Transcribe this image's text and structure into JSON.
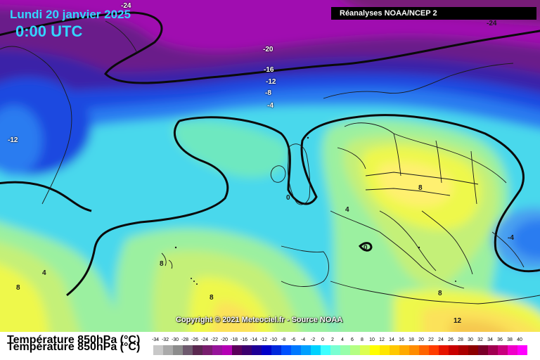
{
  "header": {
    "date": "Lundi 20 janvier 2025",
    "time": "0:00 UTC",
    "source": "Réanalyses NOAA/NCEP 2"
  },
  "copyright": "Copyright © 2021 Meteociel.fr - Source NOAA",
  "legend": {
    "title": "Température 850hPa (°C)",
    "ticks": [
      "-34",
      "-32",
      "-30",
      "-28",
      "-26",
      "-24",
      "-22",
      "-20",
      "-18",
      "-16",
      "-14",
      "-12",
      "-10",
      "-8",
      "-6",
      "-4",
      "-2",
      "0",
      "2",
      "4",
      "6",
      "8",
      "10",
      "12",
      "14",
      "16",
      "18",
      "20",
      "22",
      "24",
      "26",
      "28",
      "30",
      "32",
      "34",
      "36",
      "38",
      "40"
    ],
    "colors": [
      "#c8c8c8",
      "#aaaaaa",
      "#8c8c8c",
      "#6e5a6e",
      "#5a2850",
      "#781e6e",
      "#96149a",
      "#b400b4",
      "#5a005a",
      "#3c006e",
      "#1e0096",
      "#0000c8",
      "#0028dc",
      "#0050ff",
      "#0078ff",
      "#00a0ff",
      "#00d2ff",
      "#3cffff",
      "#78ffd2",
      "#96ffaa",
      "#b4ff82",
      "#dcff50",
      "#ffff00",
      "#ffe600",
      "#ffc800",
      "#ffaa00",
      "#ff8c00",
      "#ff6400",
      "#ff3c00",
      "#e61400",
      "#c80000",
      "#aa0000",
      "#8c0000",
      "#780028",
      "#a00050",
      "#c8007d",
      "#f000c8",
      "#ff00ff"
    ]
  },
  "contour_labels": [
    {
      "text": "-24",
      "tone": "light"
    },
    {
      "text": "-24",
      "tone": "dark"
    },
    {
      "text": "-20",
      "tone": "light"
    },
    {
      "text": "-16",
      "tone": "light"
    },
    {
      "text": "-12",
      "tone": "light"
    },
    {
      "text": "-8",
      "tone": "light"
    },
    {
      "text": "-4",
      "tone": "light"
    },
    {
      "text": "-12",
      "tone": "light"
    },
    {
      "text": "0",
      "tone": "dark"
    },
    {
      "text": "4",
      "tone": "dark"
    },
    {
      "text": "8",
      "tone": "dark"
    },
    {
      "text": "0",
      "tone": "dark"
    },
    {
      "text": "-4",
      "tone": "dark"
    },
    {
      "text": "4",
      "tone": "dark"
    },
    {
      "text": "8",
      "tone": "dark"
    },
    {
      "text": "8",
      "tone": "dark"
    },
    {
      "text": "8",
      "tone": "dark"
    },
    {
      "text": "8",
      "tone": "dark"
    },
    {
      "text": "12",
      "tone": "dark"
    }
  ]
}
